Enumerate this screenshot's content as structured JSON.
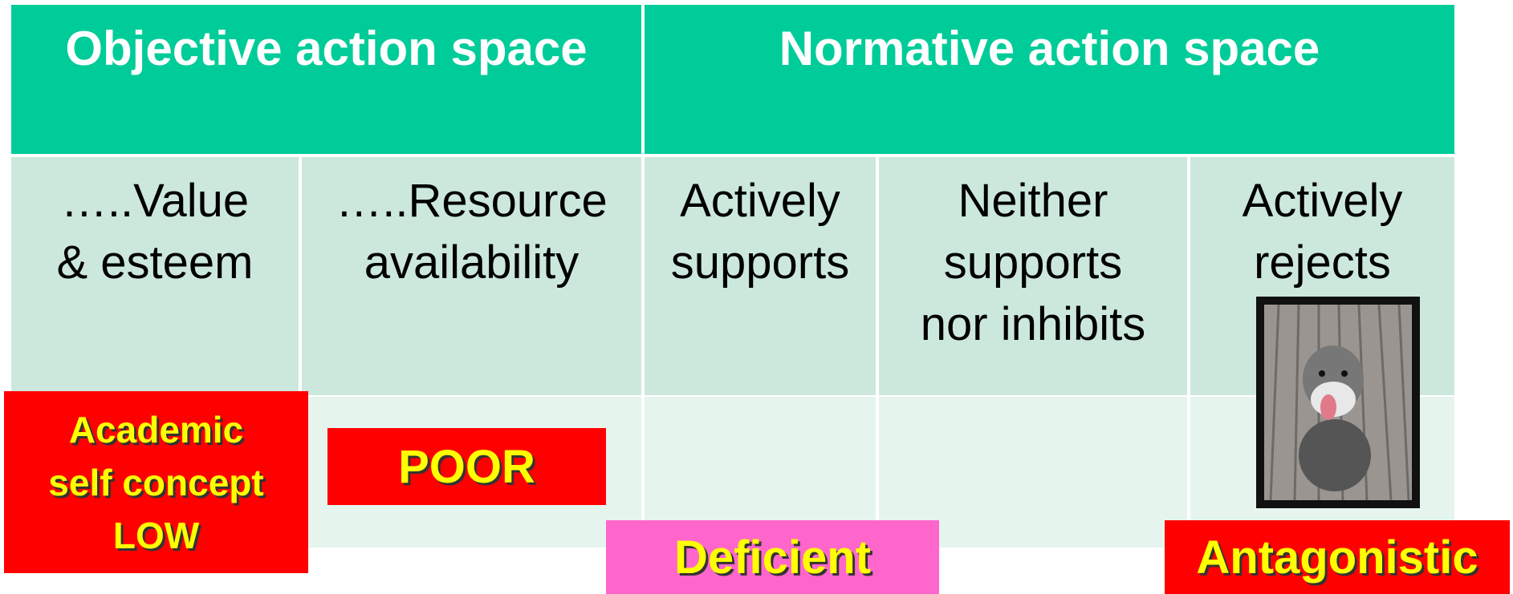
{
  "table": {
    "header": [
      "Objective action space",
      "Normative action space"
    ],
    "columns": [
      [
        "…..Value",
        "& esteem"
      ],
      [
        "…..Resource",
        "availability"
      ],
      [
        "Actively",
        "supports"
      ],
      [
        "Neither",
        "supports",
        "nor inhibits"
      ],
      [
        "Actively",
        "rejects"
      ]
    ]
  },
  "labels": {
    "academic": [
      "Academic",
      "self concept",
      "LOW"
    ],
    "poor": "POOR",
    "deficient": "Deficient",
    "antagonistic": "Antagonistic"
  }
}
